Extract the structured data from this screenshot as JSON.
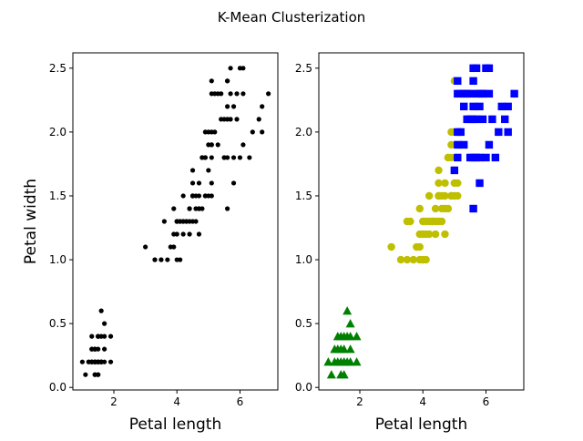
{
  "figure": {
    "suptitle": "K-Mean Clusterization"
  },
  "chart_data": [
    {
      "type": "scatter",
      "title": "",
      "xlabel": "Petal length",
      "ylabel": "Petal width",
      "xlim": [
        0.7,
        7.2
      ],
      "ylim": [
        -0.02,
        2.62
      ],
      "xticks": [
        2,
        4,
        6
      ],
      "yticks": [
        0.0,
        0.5,
        1.0,
        1.5,
        2.0,
        2.5
      ],
      "xtick_labels": [
        "2",
        "4",
        "6"
      ],
      "ytick_labels": [
        "0.0",
        "0.5",
        "1.0",
        "1.5",
        "2.0",
        "2.5"
      ],
      "grid": false,
      "series": [
        {
          "marker": "circle",
          "color": "#000000",
          "points": [
            [
              1.4,
              0.2
            ],
            [
              1.4,
              0.2
            ],
            [
              1.3,
              0.2
            ],
            [
              1.5,
              0.2
            ],
            [
              1.4,
              0.2
            ],
            [
              1.7,
              0.4
            ],
            [
              1.4,
              0.3
            ],
            [
              1.5,
              0.2
            ],
            [
              1.4,
              0.2
            ],
            [
              1.5,
              0.1
            ],
            [
              1.5,
              0.2
            ],
            [
              1.6,
              0.2
            ],
            [
              1.4,
              0.1
            ],
            [
              1.1,
              0.1
            ],
            [
              1.2,
              0.2
            ],
            [
              1.5,
              0.4
            ],
            [
              1.3,
              0.4
            ],
            [
              1.4,
              0.3
            ],
            [
              1.7,
              0.3
            ],
            [
              1.5,
              0.3
            ],
            [
              1.7,
              0.2
            ],
            [
              1.5,
              0.4
            ],
            [
              1.0,
              0.2
            ],
            [
              1.7,
              0.5
            ],
            [
              1.9,
              0.2
            ],
            [
              1.6,
              0.2
            ],
            [
              1.6,
              0.4
            ],
            [
              1.5,
              0.2
            ],
            [
              1.4,
              0.2
            ],
            [
              1.6,
              0.2
            ],
            [
              1.6,
              0.2
            ],
            [
              1.5,
              0.4
            ],
            [
              1.5,
              0.1
            ],
            [
              1.4,
              0.2
            ],
            [
              1.5,
              0.2
            ],
            [
              1.2,
              0.2
            ],
            [
              1.3,
              0.2
            ],
            [
              1.4,
              0.1
            ],
            [
              1.3,
              0.2
            ],
            [
              1.5,
              0.2
            ],
            [
              1.3,
              0.3
            ],
            [
              1.3,
              0.3
            ],
            [
              1.3,
              0.2
            ],
            [
              1.6,
              0.6
            ],
            [
              1.9,
              0.4
            ],
            [
              1.4,
              0.3
            ],
            [
              1.6,
              0.2
            ],
            [
              1.4,
              0.2
            ],
            [
              1.5,
              0.2
            ],
            [
              1.4,
              0.2
            ],
            [
              4.7,
              1.4
            ],
            [
              4.5,
              1.5
            ],
            [
              4.9,
              1.5
            ],
            [
              4.0,
              1.3
            ],
            [
              4.6,
              1.5
            ],
            [
              4.5,
              1.3
            ],
            [
              4.7,
              1.6
            ],
            [
              3.3,
              1.0
            ],
            [
              4.6,
              1.3
            ],
            [
              3.9,
              1.4
            ],
            [
              3.5,
              1.0
            ],
            [
              4.2,
              1.5
            ],
            [
              4.0,
              1.0
            ],
            [
              4.7,
              1.4
            ],
            [
              3.6,
              1.3
            ],
            [
              4.4,
              1.4
            ],
            [
              4.5,
              1.5
            ],
            [
              4.1,
              1.0
            ],
            [
              4.5,
              1.5
            ],
            [
              3.9,
              1.1
            ],
            [
              4.8,
              1.8
            ],
            [
              4.0,
              1.3
            ],
            [
              4.9,
              1.5
            ],
            [
              4.7,
              1.2
            ],
            [
              4.3,
              1.3
            ],
            [
              4.4,
              1.4
            ],
            [
              4.8,
              1.4
            ],
            [
              5.0,
              1.7
            ],
            [
              4.5,
              1.5
            ],
            [
              3.5,
              1.0
            ],
            [
              3.8,
              1.1
            ],
            [
              3.7,
              1.0
            ],
            [
              3.9,
              1.2
            ],
            [
              5.1,
              1.6
            ],
            [
              4.5,
              1.5
            ],
            [
              4.5,
              1.6
            ],
            [
              4.7,
              1.5
            ],
            [
              4.4,
              1.3
            ],
            [
              4.1,
              1.3
            ],
            [
              4.0,
              1.3
            ],
            [
              4.4,
              1.2
            ],
            [
              4.6,
              1.4
            ],
            [
              4.0,
              1.2
            ],
            [
              3.3,
              1.0
            ],
            [
              4.2,
              1.3
            ],
            [
              4.2,
              1.2
            ],
            [
              4.2,
              1.3
            ],
            [
              4.3,
              1.3
            ],
            [
              3.0,
              1.1
            ],
            [
              4.1,
              1.3
            ],
            [
              6.0,
              2.5
            ],
            [
              5.1,
              1.9
            ],
            [
              5.9,
              2.1
            ],
            [
              5.6,
              1.8
            ],
            [
              5.8,
              2.2
            ],
            [
              6.6,
              2.1
            ],
            [
              4.5,
              1.7
            ],
            [
              6.3,
              1.8
            ],
            [
              5.8,
              1.8
            ],
            [
              6.1,
              2.5
            ],
            [
              5.1,
              2.0
            ],
            [
              5.3,
              1.9
            ],
            [
              5.5,
              2.1
            ],
            [
              5.0,
              2.0
            ],
            [
              5.1,
              2.4
            ],
            [
              5.3,
              2.3
            ],
            [
              5.5,
              1.8
            ],
            [
              6.7,
              2.2
            ],
            [
              6.9,
              2.3
            ],
            [
              5.0,
              1.5
            ],
            [
              5.7,
              2.3
            ],
            [
              4.9,
              2.0
            ],
            [
              6.7,
              2.0
            ],
            [
              4.9,
              1.8
            ],
            [
              5.7,
              2.1
            ],
            [
              6.0,
              1.8
            ],
            [
              4.8,
              1.8
            ],
            [
              4.9,
              1.8
            ],
            [
              5.6,
              2.1
            ],
            [
              5.8,
              1.6
            ],
            [
              6.1,
              1.9
            ],
            [
              6.4,
              2.0
            ],
            [
              5.6,
              2.2
            ],
            [
              5.1,
              1.5
            ],
            [
              5.6,
              1.4
            ],
            [
              6.1,
              2.3
            ],
            [
              5.6,
              2.4
            ],
            [
              5.5,
              1.8
            ],
            [
              4.8,
              1.8
            ],
            [
              5.4,
              2.1
            ],
            [
              5.6,
              2.4
            ],
            [
              5.1,
              2.3
            ],
            [
              5.1,
              1.9
            ],
            [
              5.9,
              2.3
            ],
            [
              5.7,
              2.5
            ],
            [
              5.2,
              2.3
            ],
            [
              5.0,
              1.9
            ],
            [
              5.2,
              2.0
            ],
            [
              5.4,
              2.3
            ],
            [
              5.1,
              1.8
            ]
          ]
        }
      ]
    },
    {
      "type": "scatter",
      "title": "",
      "xlabel": "Petal length",
      "ylabel": "",
      "xlim": [
        0.7,
        7.2
      ],
      "ylim": [
        -0.02,
        2.62
      ],
      "xticks": [
        2,
        4,
        6
      ],
      "yticks": [
        0.0,
        0.5,
        1.0,
        1.5,
        2.0,
        2.5
      ],
      "xtick_labels": [
        "2",
        "4",
        "6"
      ],
      "ytick_labels": [
        "0.0",
        "0.5",
        "1.0",
        "1.5",
        "2.0",
        "2.5"
      ],
      "grid": false,
      "series": [
        {
          "marker": "triangle",
          "color": "#008000",
          "points": [
            [
              1.4,
              0.2
            ],
            [
              1.3,
              0.2
            ],
            [
              1.5,
              0.2
            ],
            [
              1.7,
              0.4
            ],
            [
              1.4,
              0.3
            ],
            [
              1.5,
              0.1
            ],
            [
              1.6,
              0.2
            ],
            [
              1.4,
              0.1
            ],
            [
              1.1,
              0.1
            ],
            [
              1.2,
              0.2
            ],
            [
              1.5,
              0.4
            ],
            [
              1.3,
              0.4
            ],
            [
              1.7,
              0.3
            ],
            [
              1.5,
              0.3
            ],
            [
              1.7,
              0.2
            ],
            [
              1.0,
              0.2
            ],
            [
              1.7,
              0.5
            ],
            [
              1.9,
              0.2
            ],
            [
              1.6,
              0.4
            ],
            [
              1.3,
              0.3
            ],
            [
              1.6,
              0.6
            ],
            [
              1.9,
              0.4
            ],
            [
              1.4,
              0.4
            ],
            [
              1.2,
              0.3
            ],
            [
              1.5,
              0.2
            ]
          ]
        },
        {
          "marker": "circle",
          "color": "#bfbf00",
          "points": [
            [
              4.7,
              1.4
            ],
            [
              4.5,
              1.5
            ],
            [
              4.9,
              1.5
            ],
            [
              4.0,
              1.3
            ],
            [
              4.6,
              1.5
            ],
            [
              4.5,
              1.3
            ],
            [
              4.7,
              1.6
            ],
            [
              3.3,
              1.0
            ],
            [
              4.6,
              1.3
            ],
            [
              3.9,
              1.4
            ],
            [
              3.5,
              1.0
            ],
            [
              4.2,
              1.5
            ],
            [
              4.0,
              1.0
            ],
            [
              3.6,
              1.3
            ],
            [
              4.4,
              1.4
            ],
            [
              4.1,
              1.0
            ],
            [
              3.9,
              1.1
            ],
            [
              4.8,
              1.8
            ],
            [
              4.9,
              1.5
            ],
            [
              4.7,
              1.2
            ],
            [
              4.3,
              1.3
            ],
            [
              4.8,
              1.4
            ],
            [
              5.0,
              1.7
            ],
            [
              3.8,
              1.1
            ],
            [
              3.7,
              1.0
            ],
            [
              3.9,
              1.2
            ],
            [
              5.1,
              1.6
            ],
            [
              4.5,
              1.6
            ],
            [
              4.4,
              1.3
            ],
            [
              4.1,
              1.3
            ],
            [
              4.4,
              1.2
            ],
            [
              4.6,
              1.4
            ],
            [
              4.0,
              1.2
            ],
            [
              4.2,
              1.3
            ],
            [
              4.2,
              1.2
            ],
            [
              4.3,
              1.3
            ],
            [
              3.0,
              1.1
            ],
            [
              4.5,
              1.7
            ],
            [
              5.0,
              2.0
            ],
            [
              4.9,
              2.0
            ],
            [
              4.9,
              1.8
            ],
            [
              4.8,
              1.8
            ],
            [
              5.0,
              1.5
            ],
            [
              5.1,
              1.5
            ],
            [
              5.1,
              1.9
            ],
            [
              4.9,
              1.9
            ],
            [
              5.0,
              2.4
            ],
            [
              5.1,
              1.8
            ],
            [
              4.5,
              1.5
            ],
            [
              4.7,
              1.5
            ],
            [
              4.0,
              1.0
            ],
            [
              3.5,
              1.3
            ],
            [
              3.9,
              1.0
            ],
            [
              4.1,
              1.2
            ],
            [
              5.0,
              1.6
            ]
          ]
        },
        {
          "marker": "square",
          "color": "#0000ff",
          "points": [
            [
              6.0,
              2.5
            ],
            [
              5.1,
              1.9
            ],
            [
              5.9,
              2.1
            ],
            [
              5.6,
              1.8
            ],
            [
              5.8,
              2.2
            ],
            [
              6.6,
              2.1
            ],
            [
              6.3,
              1.8
            ],
            [
              5.8,
              1.8
            ],
            [
              6.1,
              2.5
            ],
            [
              5.1,
              2.0
            ],
            [
              5.3,
              1.9
            ],
            [
              5.5,
              2.1
            ],
            [
              5.1,
              2.4
            ],
            [
              5.3,
              2.3
            ],
            [
              5.5,
              1.8
            ],
            [
              6.7,
              2.2
            ],
            [
              6.9,
              2.3
            ],
            [
              5.0,
              1.7
            ],
            [
              5.7,
              2.3
            ],
            [
              6.7,
              2.0
            ],
            [
              5.7,
              2.1
            ],
            [
              6.0,
              1.8
            ],
            [
              5.6,
              2.1
            ],
            [
              5.8,
              1.6
            ],
            [
              6.1,
              1.9
            ],
            [
              6.4,
              2.0
            ],
            [
              5.6,
              2.2
            ],
            [
              5.6,
              1.4
            ],
            [
              6.1,
              2.3
            ],
            [
              5.6,
              2.4
            ],
            [
              5.4,
              2.1
            ],
            [
              5.1,
              2.3
            ],
            [
              5.9,
              2.3
            ],
            [
              5.7,
              2.5
            ],
            [
              5.2,
              2.3
            ],
            [
              5.2,
              2.0
            ],
            [
              5.4,
              2.3
            ],
            [
              5.1,
              1.8
            ],
            [
              5.5,
              2.3
            ],
            [
              6.2,
              2.1
            ],
            [
              6.5,
              2.2
            ],
            [
              5.6,
              2.5
            ],
            [
              5.9,
              2.3
            ],
            [
              5.3,
              2.2
            ],
            [
              5.8,
              2.3
            ],
            [
              5.7,
              1.8
            ]
          ]
        }
      ]
    }
  ]
}
